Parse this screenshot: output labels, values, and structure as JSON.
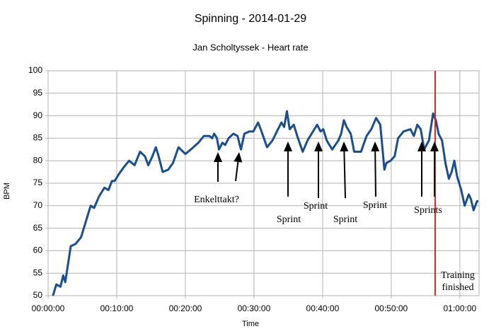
{
  "chart_data": {
    "type": "line",
    "title": "Spinning - 2014-01-29",
    "subtitle": "Jan Scholtyssek - Heart rate",
    "x_label": "Time",
    "y_label": "BPM",
    "x": [
      0.7,
      1.2,
      1.8,
      2.2,
      2.5,
      2.8,
      3.3,
      4.0,
      4.8,
      5.6,
      6.2,
      6.7,
      7.4,
      8.2,
      8.8,
      9.3,
      9.7,
      10.3,
      11.0,
      11.8,
      12.6,
      13.4,
      14.1,
      14.6,
      15.2,
      15.7,
      16.1,
      16.7,
      17.5,
      18.2,
      19.0,
      20.0,
      20.8,
      21.9,
      22.7,
      23.5,
      23.9,
      24.2,
      24.6,
      24.9,
      25.4,
      25.8,
      26.3,
      27.0,
      27.6,
      28.1,
      28.6,
      29.3,
      29.9,
      30.6,
      31.1,
      31.9,
      32.7,
      33.5,
      34.0,
      34.4,
      34.8,
      35.2,
      35.8,
      36.3,
      37.1,
      37.8,
      38.6,
      39.2,
      39.7,
      40.1,
      40.6,
      41.4,
      42.3,
      42.7,
      43.1,
      43.5,
      44.1,
      44.6,
      45.6,
      46.4,
      47.1,
      47.8,
      48.4,
      48.8,
      49.0,
      49.3,
      49.9,
      50.5,
      51.0,
      51.8,
      52.8,
      53.3,
      53.8,
      54.3,
      54.8,
      55.5,
      56.1,
      56.5,
      56.9,
      57.4,
      57.9,
      58.4,
      58.8,
      59.2,
      59.6,
      60.2,
      60.7,
      61.3,
      61.6,
      62.0,
      62.5,
      62.7
    ],
    "series": [
      {
        "name": "Heart rate",
        "color": "#1a4f8b",
        "values": [
          50,
          52.5,
          52,
          54.5,
          53,
          56,
          61,
          61.5,
          63,
          67,
          70,
          69.5,
          72,
          74,
          73.5,
          75.5,
          75.5,
          77,
          78.5,
          80,
          79,
          82,
          81,
          79,
          81,
          83,
          81,
          77.5,
          78,
          79.5,
          83,
          81.5,
          82.5,
          84,
          85.5,
          85.5,
          85,
          86,
          85,
          82.5,
          84,
          83.5,
          85,
          86,
          85.5,
          82.5,
          86,
          86.5,
          86.5,
          88.5,
          86.5,
          83,
          84.5,
          87,
          88.5,
          87.5,
          91,
          87,
          88,
          85.5,
          82,
          84.5,
          86.5,
          88,
          86.5,
          87,
          84.5,
          82.5,
          84.5,
          86,
          89,
          87.5,
          86,
          82,
          82,
          85.5,
          87,
          89.5,
          88,
          81.5,
          78,
          79.5,
          80,
          81,
          85,
          86.5,
          87,
          85.5,
          88,
          87,
          82.5,
          84.5,
          90.5,
          89,
          86,
          84.5,
          79.5,
          76,
          77.5,
          80,
          76.5,
          73.5,
          70,
          72.5,
          71.5,
          69,
          71,
          71
        ]
      }
    ],
    "xlim": [
      0,
      62.8
    ],
    "ylim": [
      50,
      100
    ],
    "xticks": [
      {
        "value": 0,
        "label": "00:00:00"
      },
      {
        "value": 10,
        "label": "00:10:00"
      },
      {
        "value": 20,
        "label": "00:20:00"
      },
      {
        "value": 30,
        "label": "00:30:00"
      },
      {
        "value": 40,
        "label": "00:40:00"
      },
      {
        "value": 50,
        "label": "00:50:00"
      },
      {
        "value": 60,
        "label": "01:00:00"
      }
    ],
    "yticks": [
      50,
      55,
      60,
      65,
      70,
      75,
      80,
      85,
      90,
      95,
      100
    ],
    "grid": true,
    "vline": {
      "x": 56.4,
      "color": "#e02020"
    },
    "annotations": [
      "Enkelttakt?",
      "Sprint",
      "Sprint",
      "Sprint",
      "Sprint",
      "Sprints",
      "Training",
      "finished"
    ]
  }
}
